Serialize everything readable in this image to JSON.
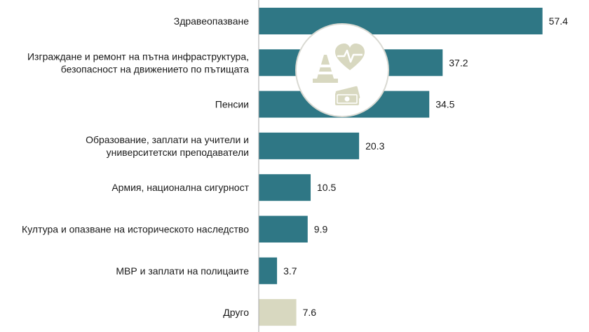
{
  "chart_data": {
    "type": "bar",
    "orientation": "horizontal",
    "categories": [
      [
        "Здравеопазване"
      ],
      [
        "Изграждане и ремонт на пътна инфраструктура,",
        "безопасност на движението по пътищата"
      ],
      [
        "Пенсии"
      ],
      [
        "Образование, заплати на учители и",
        "университетски преподаватели"
      ],
      [
        "Армия, национална сигурност"
      ],
      [
        "Култура и опазване на историческото наследство"
      ],
      [
        "МВР и заплати на полицаите"
      ],
      [
        "Друго"
      ]
    ],
    "values": [
      57.4,
      37.2,
      34.5,
      20.3,
      10.5,
      9.9,
      3.7,
      7.6
    ],
    "value_labels": [
      "57.4",
      "37.2",
      "34.5",
      "20.3",
      "10.5",
      "9.9",
      "3.7",
      "7.6"
    ],
    "bar_colors": [
      "#2f7785",
      "#2f7785",
      "#2f7785",
      "#2f7785",
      "#2f7785",
      "#2f7785",
      "#2f7785",
      "#d8d8c0"
    ],
    "axis_line_color": "#aaaaaa",
    "xlim": [
      0,
      60
    ],
    "grid": false,
    "legend": "none",
    "decoration": {
      "icons": [
        "traffic-cone-icon",
        "heart-pulse-icon",
        "money-bills-icon"
      ],
      "circle_fill": "#ffffff",
      "circle_stroke": "#d9d9d2",
      "icon_color": "#d8d8c0"
    }
  }
}
